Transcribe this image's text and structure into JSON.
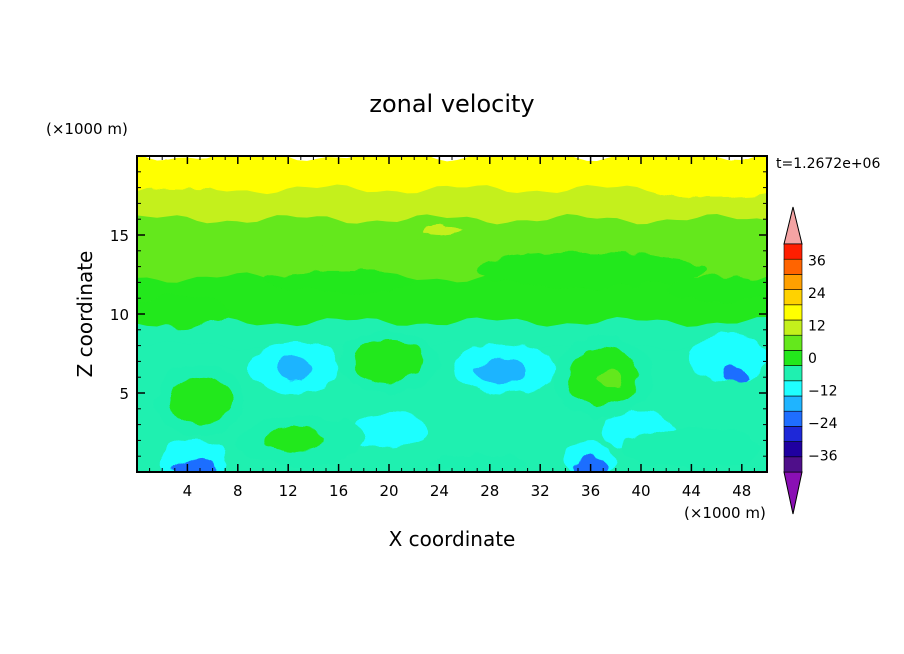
{
  "chart_data": {
    "type": "heatmap",
    "title": "zonal velocity",
    "xlabel": "X coordinate",
    "ylabel": "Z coordinate",
    "x_unit": "(×1000 m)",
    "y_unit": "(×1000 m)",
    "time_label": "t=1.2672e+06",
    "xlim": [
      0,
      50
    ],
    "ylim": [
      0,
      20
    ],
    "x_ticks": [
      4,
      8,
      12,
      16,
      20,
      24,
      28,
      32,
      36,
      40,
      44,
      48
    ],
    "y_ticks": [
      5,
      10,
      15
    ],
    "colorbar": {
      "levels": [
        -42,
        -36,
        -30,
        -24,
        -18,
        -12,
        -6,
        0,
        6,
        12,
        18,
        24,
        30,
        36,
        42
      ],
      "labels": [
        36,
        24,
        12,
        0,
        -12,
        -24,
        -36
      ],
      "colors": [
        "#4f0f8a",
        "#1f00a0",
        "#1e28d8",
        "#1f6eff",
        "#1fb4ff",
        "#1fffff",
        "#1ff0b0",
        "#23e81c",
        "#64e81c",
        "#c4f01c",
        "#ffff00",
        "#ffd200",
        "#ffa000",
        "#ff6400",
        "#ff1e00"
      ],
      "over_color": "#f4a3a3",
      "under_color": "#8a0fb4"
    },
    "bands": [
      {
        "z_top": 20.0,
        "value": 21
      },
      {
        "z_top": 19.4,
        "value": 19
      },
      {
        "z_top": 17.9,
        "value": 15
      },
      {
        "z_top": 16.0,
        "value": 9
      },
      {
        "z_top": 14.5,
        "value": 6
      },
      {
        "z_top": 12.3,
        "value": 3
      },
      {
        "z_top": 9.5,
        "value": -1
      },
      {
        "z_top": 8.0,
        "value": -4
      }
    ],
    "features": [
      {
        "x": 46,
        "z": 18.6,
        "rx": 6.5,
        "rz": 1.2,
        "value": 21
      },
      {
        "x": 5,
        "z": 18.8,
        "rx": 7,
        "rz": 0.8,
        "value": 21
      },
      {
        "x": 24,
        "z": 15.3,
        "rx": 1.5,
        "rz": 0.3,
        "value": 15
      },
      {
        "x": 36,
        "z": 12.8,
        "rx": 9,
        "rz": 1.1,
        "value": 3
      },
      {
        "x": 46,
        "z": 11.6,
        "rx": 4,
        "rz": 0.8,
        "value": 3
      },
      {
        "x": 16,
        "z": 12.0,
        "rx": 6,
        "rz": 0.7,
        "value": 3
      },
      {
        "x": 3.5,
        "z": 10.2,
        "rx": 4,
        "rz": 1.0,
        "value": 3
      },
      {
        "x": 12.5,
        "z": 6.6,
        "rx": 3.5,
        "rz": 1.6,
        "value": -9
      },
      {
        "x": 29,
        "z": 6.5,
        "rx": 4,
        "rz": 1.6,
        "value": -9
      },
      {
        "x": 47,
        "z": 7.2,
        "rx": 3,
        "rz": 1.5,
        "value": -9
      },
      {
        "x": 20,
        "z": 2.6,
        "rx": 3,
        "rz": 1.2,
        "value": -9
      },
      {
        "x": 40,
        "z": 2.6,
        "rx": 3,
        "rz": 1.2,
        "value": -9
      },
      {
        "x": 4.5,
        "z": 0.8,
        "rx": 2.6,
        "rz": 1.3,
        "value": -9
      },
      {
        "x": 36,
        "z": 0.8,
        "rx": 2.0,
        "rz": 1.1,
        "value": -9
      },
      {
        "x": 12.5,
        "z": 6.6,
        "rx": 1.5,
        "rz": 0.8,
        "value": -15
      },
      {
        "x": 29,
        "z": 6.4,
        "rx": 2.0,
        "rz": 0.8,
        "value": -15
      },
      {
        "x": 47.5,
        "z": 6.2,
        "rx": 0.9,
        "rz": 0.5,
        "value": -21
      },
      {
        "x": 4.5,
        "z": 0.3,
        "rx": 1.6,
        "rz": 0.6,
        "value": -21
      },
      {
        "x": 36,
        "z": 0.3,
        "rx": 1.2,
        "rz": 0.6,
        "value": -21
      },
      {
        "x": 5,
        "z": 4.5,
        "rx": 3.5,
        "rz": 2.2,
        "value": -1
      },
      {
        "x": 20,
        "z": 7.0,
        "rx": 4.0,
        "rz": 2.0,
        "value": -1
      },
      {
        "x": 37,
        "z": 6.0,
        "rx": 4.0,
        "rz": 2.6,
        "value": -1
      },
      {
        "x": 13,
        "z": 2.0,
        "rx": 5.0,
        "rz": 1.6,
        "value": -1
      },
      {
        "x": 44,
        "z": 1.5,
        "rx": 5.5,
        "rz": 1.3,
        "value": -1
      },
      {
        "x": 27,
        "z": 0.5,
        "rx": 4.0,
        "rz": 0.6,
        "value": -1
      },
      {
        "x": 5,
        "z": 4.5,
        "rx": 2.5,
        "rz": 1.5,
        "value": 3
      },
      {
        "x": 20,
        "z": 7.0,
        "rx": 2.8,
        "rz": 1.3,
        "value": 3
      },
      {
        "x": 37,
        "z": 6.0,
        "rx": 2.8,
        "rz": 1.8,
        "value": 3
      },
      {
        "x": 12.5,
        "z": 2.0,
        "rx": 2.2,
        "rz": 0.7,
        "value": 3
      },
      {
        "x": 37.5,
        "z": 6.0,
        "rx": 1.0,
        "rz": 0.6,
        "value": 9
      }
    ]
  }
}
